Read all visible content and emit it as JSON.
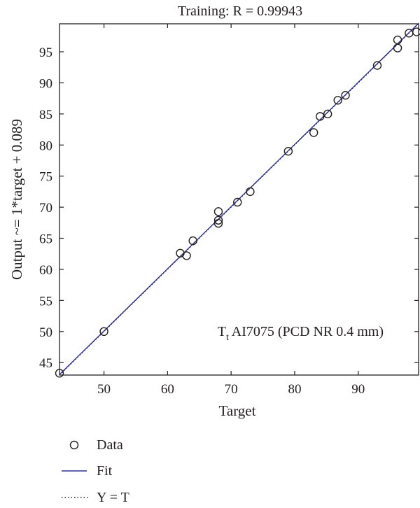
{
  "chart_data": {
    "type": "scatter",
    "title": "Training: R = 0.99943",
    "xlabel": "Target",
    "ylabel": "Output ~= 1*target + 0.089",
    "xlim": [
      43,
      99.5
    ],
    "ylim": [
      43,
      99.5
    ],
    "xticks": [
      50,
      60,
      70,
      80,
      90
    ],
    "yticks": [
      45,
      50,
      55,
      60,
      65,
      70,
      75,
      80,
      85,
      90,
      95
    ],
    "grid": false,
    "legend_position": "bottom-left",
    "annotation": {
      "main": "T",
      "sub": "t",
      "rest": " AI7075 (PCD NR 0.4 mm)"
    },
    "fit": {
      "slope": 1,
      "intercept": 0.089,
      "color": "#2e3192"
    },
    "series": [
      {
        "name": "Data",
        "points": [
          [
            43,
            43.3
          ],
          [
            50,
            50
          ],
          [
            62,
            62.6
          ],
          [
            63,
            62.2
          ],
          [
            64,
            64.6
          ],
          [
            68,
            67.4
          ],
          [
            68,
            67.9
          ],
          [
            68,
            69.3
          ],
          [
            71,
            70.8
          ],
          [
            73,
            72.5
          ],
          [
            79,
            79
          ],
          [
            83,
            82
          ],
          [
            84,
            84.6
          ],
          [
            85.2,
            85
          ],
          [
            86.8,
            87.2
          ],
          [
            88,
            88
          ],
          [
            93,
            92.8
          ],
          [
            96.2,
            95.6
          ],
          [
            96.2,
            96.9
          ],
          [
            98,
            98
          ],
          [
            99.2,
            98.2
          ]
        ]
      }
    ],
    "legend": [
      {
        "label": "Data",
        "marker": "circle"
      },
      {
        "label": "Fit",
        "marker": "line"
      },
      {
        "label": "Y = T",
        "marker": "dotted"
      }
    ]
  }
}
